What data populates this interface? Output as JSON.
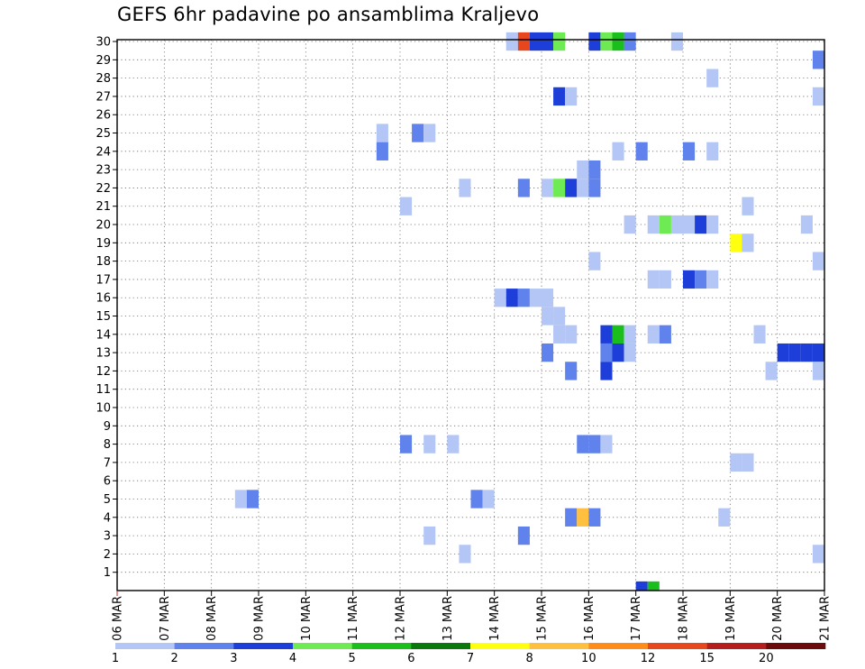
{
  "chart_data": {
    "type": "heatmap",
    "title": "GEFS 6hr padavine po ansamblima Kraljevo",
    "xlabel": "",
    "ylabel": "",
    "x_start_day": 6,
    "x_end_day": 21,
    "steps_per_day": 4,
    "x_ticks": [
      "06 MAR",
      "07 MAR",
      "08 MAR",
      "09 MAR",
      "10 MAR",
      "11 MAR",
      "12 MAR",
      "13 MAR",
      "14 MAR",
      "15 MAR",
      "16 MAR",
      "17 MAR",
      "18 MAR",
      "19 MAR",
      "20 MAR",
      "21 MAR"
    ],
    "y_ticks": [
      "1",
      "2",
      "3",
      "4",
      "5",
      "6",
      "7",
      "8",
      "9",
      "10",
      "11",
      "12",
      "13",
      "14",
      "15",
      "16",
      "17",
      "18",
      "19",
      "20",
      "21",
      "22",
      "23",
      "24",
      "25",
      "26",
      "27",
      "28",
      "29",
      "30"
    ],
    "ylim": [
      0,
      30
    ],
    "grid": true,
    "colorbar": {
      "labels": [
        "1",
        "2",
        "3",
        "4",
        "5",
        "6",
        "7",
        "8",
        "10",
        "12",
        "15",
        "20"
      ],
      "colors": [
        "#b4c6f5",
        "#5f82ec",
        "#1e3ed9",
        "#6eeb52",
        "#1bbf1b",
        "#0a780a",
        "#ffff10",
        "#ffc040",
        "#ff8c19",
        "#e8461c",
        "#b41e1e",
        "#6b0b0b"
      ]
    },
    "cells": [
      {
        "member": 30,
        "day": 14.25,
        "level": 1
      },
      {
        "member": 30,
        "day": 14.5,
        "level": 10
      },
      {
        "member": 30,
        "day": 14.75,
        "level": 3
      },
      {
        "member": 30,
        "day": 15.0,
        "level": 3
      },
      {
        "member": 30,
        "day": 15.25,
        "level": 4
      },
      {
        "member": 30,
        "day": 16.0,
        "level": 3
      },
      {
        "member": 30,
        "day": 16.25,
        "level": 4
      },
      {
        "member": 30,
        "day": 16.5,
        "level": 5
      },
      {
        "member": 30,
        "day": 16.75,
        "level": 2
      },
      {
        "member": 30,
        "day": 17.75,
        "level": 1
      },
      {
        "member": 29,
        "day": 20.75,
        "level": 2
      },
      {
        "member": 28,
        "day": 18.5,
        "level": 1
      },
      {
        "member": 27,
        "day": 15.25,
        "level": 3
      },
      {
        "member": 27,
        "day": 15.5,
        "level": 1
      },
      {
        "member": 27,
        "day": 20.75,
        "level": 1
      },
      {
        "member": 25,
        "day": 11.5,
        "level": 1
      },
      {
        "member": 25,
        "day": 12.25,
        "level": 2
      },
      {
        "member": 25,
        "day": 12.5,
        "level": 1
      },
      {
        "member": 24,
        "day": 11.5,
        "level": 2
      },
      {
        "member": 24,
        "day": 16.5,
        "level": 1
      },
      {
        "member": 24,
        "day": 17.0,
        "level": 2
      },
      {
        "member": 24,
        "day": 18.0,
        "level": 2
      },
      {
        "member": 24,
        "day": 18.5,
        "level": 1
      },
      {
        "member": 23,
        "day": 15.75,
        "level": 1
      },
      {
        "member": 23,
        "day": 16.0,
        "level": 2
      },
      {
        "member": 22,
        "day": 13.25,
        "level": 1
      },
      {
        "member": 22,
        "day": 14.5,
        "level": 2
      },
      {
        "member": 22,
        "day": 15.0,
        "level": 1
      },
      {
        "member": 22,
        "day": 15.25,
        "level": 4
      },
      {
        "member": 22,
        "day": 15.5,
        "level": 3
      },
      {
        "member": 22,
        "day": 15.75,
        "level": 1
      },
      {
        "member": 22,
        "day": 16.0,
        "level": 2
      },
      {
        "member": 21,
        "day": 12.0,
        "level": 1
      },
      {
        "member": 21,
        "day": 19.25,
        "level": 1
      },
      {
        "member": 20,
        "day": 16.75,
        "level": 1
      },
      {
        "member": 20,
        "day": 17.25,
        "level": 1
      },
      {
        "member": 20,
        "day": 17.5,
        "level": 4
      },
      {
        "member": 20,
        "day": 17.75,
        "level": 1
      },
      {
        "member": 20,
        "day": 18.0,
        "level": 1
      },
      {
        "member": 20,
        "day": 18.25,
        "level": 3
      },
      {
        "member": 20,
        "day": 18.5,
        "level": 1
      },
      {
        "member": 20,
        "day": 20.5,
        "level": 1
      },
      {
        "member": 19,
        "day": 19.0,
        "level": 7
      },
      {
        "member": 19,
        "day": 19.25,
        "level": 1
      },
      {
        "member": 18,
        "day": 16.0,
        "level": 1
      },
      {
        "member": 18,
        "day": 20.75,
        "level": 1
      },
      {
        "member": 17,
        "day": 17.25,
        "level": 1
      },
      {
        "member": 17,
        "day": 17.5,
        "level": 1
      },
      {
        "member": 17,
        "day": 18.0,
        "level": 3
      },
      {
        "member": 17,
        "day": 18.25,
        "level": 2
      },
      {
        "member": 17,
        "day": 18.5,
        "level": 1
      },
      {
        "member": 16,
        "day": 14.0,
        "level": 1
      },
      {
        "member": 16,
        "day": 14.25,
        "level": 3
      },
      {
        "member": 16,
        "day": 14.5,
        "level": 2
      },
      {
        "member": 16,
        "day": 14.75,
        "level": 1
      },
      {
        "member": 16,
        "day": 15.0,
        "level": 1
      },
      {
        "member": 15,
        "day": 15.0,
        "level": 1
      },
      {
        "member": 15,
        "day": 15.25,
        "level": 1
      },
      {
        "member": 14,
        "day": 15.25,
        "level": 1
      },
      {
        "member": 14,
        "day": 15.5,
        "level": 1
      },
      {
        "member": 14,
        "day": 16.25,
        "level": 3
      },
      {
        "member": 14,
        "day": 16.5,
        "level": 5
      },
      {
        "member": 14,
        "day": 16.75,
        "level": 1
      },
      {
        "member": 14,
        "day": 17.25,
        "level": 1
      },
      {
        "member": 14,
        "day": 17.5,
        "level": 2
      },
      {
        "member": 14,
        "day": 19.5,
        "level": 1
      },
      {
        "member": 13,
        "day": 15.0,
        "level": 2
      },
      {
        "member": 13,
        "day": 16.25,
        "level": 2
      },
      {
        "member": 13,
        "day": 16.5,
        "level": 3
      },
      {
        "member": 13,
        "day": 16.75,
        "level": 1
      },
      {
        "member": 13,
        "day": 20.0,
        "level": 3
      },
      {
        "member": 13,
        "day": 20.25,
        "level": 3
      },
      {
        "member": 13,
        "day": 20.5,
        "level": 3
      },
      {
        "member": 13,
        "day": 20.75,
        "level": 3
      },
      {
        "member": 12,
        "day": 15.5,
        "level": 2
      },
      {
        "member": 12,
        "day": 16.25,
        "level": 3
      },
      {
        "member": 12,
        "day": 19.75,
        "level": 1
      },
      {
        "member": 12,
        "day": 20.75,
        "level": 1
      },
      {
        "member": 8,
        "day": 12.0,
        "level": 2
      },
      {
        "member": 8,
        "day": 12.5,
        "level": 1
      },
      {
        "member": 8,
        "day": 13.0,
        "level": 1
      },
      {
        "member": 8,
        "day": 15.75,
        "level": 2
      },
      {
        "member": 8,
        "day": 16.0,
        "level": 2
      },
      {
        "member": 8,
        "day": 16.25,
        "level": 1
      },
      {
        "member": 7,
        "day": 19.0,
        "level": 1
      },
      {
        "member": 7,
        "day": 19.25,
        "level": 1
      },
      {
        "member": 5,
        "day": 8.5,
        "level": 1
      },
      {
        "member": 5,
        "day": 8.75,
        "level": 2
      },
      {
        "member": 5,
        "day": 13.5,
        "level": 2
      },
      {
        "member": 5,
        "day": 13.75,
        "level": 1
      },
      {
        "member": 4,
        "day": 15.5,
        "level": 2
      },
      {
        "member": 4,
        "day": 15.75,
        "level": 8
      },
      {
        "member": 4,
        "day": 16.0,
        "level": 2
      },
      {
        "member": 4,
        "day": 18.75,
        "level": 1
      },
      {
        "member": 3,
        "day": 12.5,
        "level": 1
      },
      {
        "member": 3,
        "day": 14.5,
        "level": 2
      },
      {
        "member": 2,
        "day": 13.25,
        "level": 1
      },
      {
        "member": 2,
        "day": 20.75,
        "level": 1
      },
      {
        "member": 0,
        "day": 17.0,
        "level": 3
      },
      {
        "member": 0,
        "day": 17.25,
        "level": 5
      }
    ]
  }
}
